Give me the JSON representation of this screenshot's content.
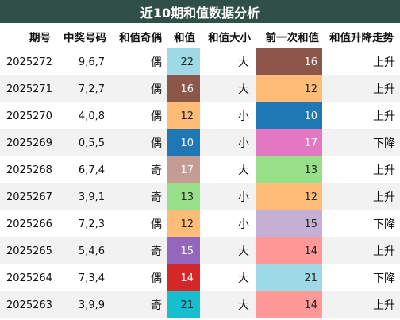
{
  "title": "近10期和值数据分析",
  "columns": [
    "期号",
    "中奖号码",
    "和值奇偶",
    "和值",
    "和值大小",
    "前一次和值",
    "和值升降走势"
  ],
  "rows": [
    {
      "issue": "2025272",
      "numbers": "9,6,7",
      "parity": "偶",
      "sum": "22",
      "sum_color": "#9edae5",
      "sum_text_color": "#222222",
      "size": "大",
      "prev": "16",
      "prev_color": "#8c564b",
      "prev_text_color": "#ffffff",
      "trend": "上升"
    },
    {
      "issue": "2025271",
      "numbers": "7,2,7",
      "parity": "偶",
      "sum": "16",
      "sum_color": "#8c564b",
      "sum_text_color": "#ffffff",
      "size": "大",
      "prev": "12",
      "prev_color": "#ffbb78",
      "prev_text_color": "#222222",
      "trend": "上升"
    },
    {
      "issue": "2025270",
      "numbers": "4,0,8",
      "parity": "偶",
      "sum": "12",
      "sum_color": "#ffbb78",
      "sum_text_color": "#222222",
      "size": "小",
      "prev": "10",
      "prev_color": "#1f77b4",
      "prev_text_color": "#ffffff",
      "trend": "上升"
    },
    {
      "issue": "2025269",
      "numbers": "0,5,5",
      "parity": "偶",
      "sum": "10",
      "sum_color": "#1f77b4",
      "sum_text_color": "#ffffff",
      "size": "小",
      "prev": "17",
      "prev_color": "#e377c2",
      "prev_text_color": "#ffffff",
      "trend": "下降"
    },
    {
      "issue": "2025268",
      "numbers": "6,7,4",
      "parity": "奇",
      "sum": "17",
      "sum_color": "#c49c94",
      "sum_text_color": "#ffffff",
      "size": "大",
      "prev": "13",
      "prev_color": "#98df8a",
      "prev_text_color": "#222222",
      "trend": "上升"
    },
    {
      "issue": "2025267",
      "numbers": "3,9,1",
      "parity": "奇",
      "sum": "13",
      "sum_color": "#98df8a",
      "sum_text_color": "#222222",
      "size": "小",
      "prev": "12",
      "prev_color": "#ffbb78",
      "prev_text_color": "#222222",
      "trend": "上升"
    },
    {
      "issue": "2025266",
      "numbers": "7,2,3",
      "parity": "偶",
      "sum": "12",
      "sum_color": "#ffbb78",
      "sum_text_color": "#222222",
      "size": "小",
      "prev": "15",
      "prev_color": "#c5b0d5",
      "prev_text_color": "#222222",
      "trend": "下降"
    },
    {
      "issue": "2025265",
      "numbers": "5,4,6",
      "parity": "奇",
      "sum": "15",
      "sum_color": "#9467bd",
      "sum_text_color": "#ffffff",
      "size": "大",
      "prev": "14",
      "prev_color": "#ff9896",
      "prev_text_color": "#222222",
      "trend": "上升"
    },
    {
      "issue": "2025264",
      "numbers": "7,3,4",
      "parity": "偶",
      "sum": "14",
      "sum_color": "#d62728",
      "sum_text_color": "#ffffff",
      "size": "大",
      "prev": "21",
      "prev_color": "#9edae5",
      "prev_text_color": "#222222",
      "trend": "下降"
    },
    {
      "issue": "2025263",
      "numbers": "3,9,9",
      "parity": "奇",
      "sum": "21",
      "sum_color": "#17becf",
      "sum_text_color": "#222222",
      "size": "大",
      "prev": "14",
      "prev_color": "#ff9896",
      "prev_text_color": "#222222",
      "trend": "上升"
    }
  ]
}
